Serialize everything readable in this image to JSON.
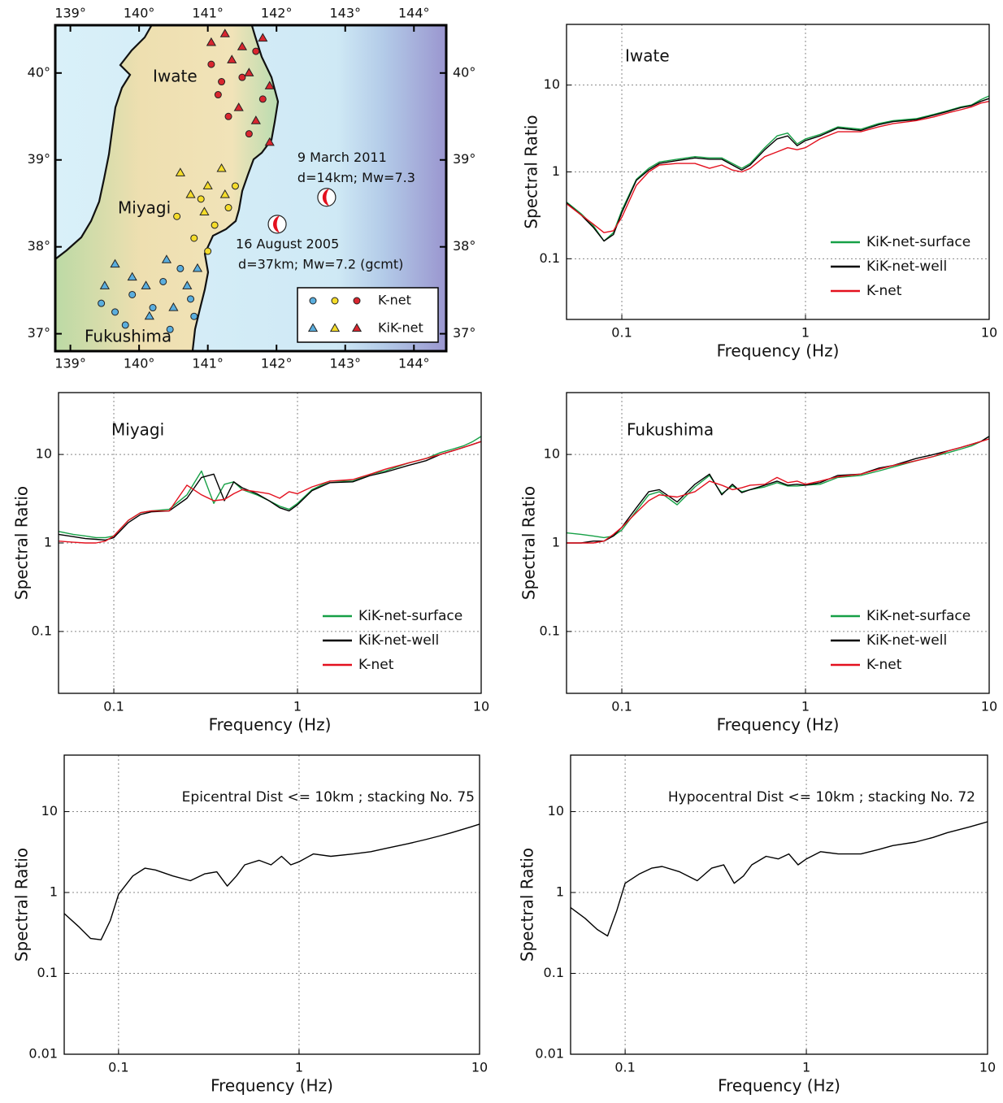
{
  "chart_data": [
    {
      "type": "map",
      "xlim": [
        138.78,
        144.47
      ],
      "ylim": [
        36.8,
        40.55
      ],
      "xticks": [
        {
          "value": 139,
          "label": "139°"
        },
        {
          "value": 140,
          "label": "140°"
        },
        {
          "value": 141,
          "label": "141°"
        },
        {
          "value": 142,
          "label": "142°"
        },
        {
          "value": 143,
          "label": "143°"
        },
        {
          "value": 144,
          "label": "144°"
        }
      ],
      "yticks": [
        {
          "value": 37,
          "label": "37°"
        },
        {
          "value": 38,
          "label": "38°"
        },
        {
          "value": 39,
          "label": "39°"
        },
        {
          "value": 40,
          "label": "40°"
        }
      ],
      "regions": [
        "Iwate",
        "Miyagi",
        "Fukushima"
      ],
      "events": [
        {
          "date": "9 March 2011",
          "desc": "d=14km; Mw=7.3",
          "lon": 142.73,
          "lat": 38.57,
          "color": "#e3101e"
        },
        {
          "date": "16 August 2005",
          "desc": "d=37km; Mw=7.2 (gcmt)",
          "lon": 142.01,
          "lat": 38.26,
          "color": "#e3101e"
        }
      ],
      "series": [
        {
          "name": "K-net",
          "marker": "circle",
          "x": [
            139.45,
            139.65,
            139.9,
            140.2,
            140.45,
            140.75,
            140.8,
            140.35,
            139.8,
            140.6,
            140.55,
            140.9,
            141.1,
            141.3,
            141.0,
            140.8,
            141.4,
            141.05,
            141.2,
            141.5,
            141.7,
            141.3,
            141.6,
            141.15,
            141.8
          ],
          "y": [
            37.35,
            37.25,
            37.45,
            37.3,
            37.05,
            37.4,
            37.2,
            37.6,
            37.1,
            37.75,
            38.35,
            38.55,
            38.25,
            38.45,
            37.95,
            38.1,
            38.7,
            40.1,
            39.9,
            39.95,
            40.25,
            39.5,
            39.3,
            39.75,
            39.7
          ],
          "colors": [
            "#5aaede",
            "#5aaede",
            "#5aaede",
            "#5aaede",
            "#5aaede",
            "#5aaede",
            "#5aaede",
            "#5aaede",
            "#5aaede",
            "#5aaede",
            "#f5dc2a",
            "#f5dc2a",
            "#f5dc2a",
            "#f5dc2a",
            "#f5dc2a",
            "#f5dc2a",
            "#f5dc2a",
            "#d9262f",
            "#d9262f",
            "#d9262f",
            "#d9262f",
            "#d9262f",
            "#d9262f",
            "#d9262f",
            "#d9262f"
          ]
        },
        {
          "name": "KiK-net",
          "marker": "triangle",
          "x": [
            139.65,
            139.9,
            140.1,
            140.4,
            140.7,
            140.85,
            139.5,
            140.15,
            140.5,
            140.6,
            140.75,
            141.0,
            141.25,
            140.95,
            141.2,
            141.05,
            141.25,
            141.5,
            141.35,
            141.6,
            141.8,
            141.9,
            141.45,
            141.7,
            141.9
          ],
          "y": [
            37.8,
            37.65,
            37.55,
            37.85,
            37.55,
            37.75,
            37.55,
            37.2,
            37.3,
            38.85,
            38.6,
            38.7,
            38.6,
            38.4,
            38.9,
            40.35,
            40.45,
            40.3,
            40.15,
            40.0,
            40.4,
            39.85,
            39.6,
            39.45,
            39.2
          ],
          "colors": [
            "#5aaede",
            "#5aaede",
            "#5aaede",
            "#5aaede",
            "#5aaede",
            "#5aaede",
            "#5aaede",
            "#5aaede",
            "#5aaede",
            "#f5dc2a",
            "#f5dc2a",
            "#f5dc2a",
            "#f5dc2a",
            "#f5dc2a",
            "#f5dc2a",
            "#d9262f",
            "#d9262f",
            "#d9262f",
            "#d9262f",
            "#d9262f",
            "#d9262f",
            "#d9262f",
            "#d9262f",
            "#d9262f",
            "#d9262f"
          ]
        }
      ]
    },
    {
      "type": "line",
      "title": "Iwate",
      "xlabel": "Frequency (Hz)",
      "ylabel": "Spectral Ratio",
      "log_x": true,
      "log_y": true,
      "grid": true,
      "legend": "lower right",
      "xlim": [
        0.05,
        10
      ],
      "xticks": [
        0.1,
        1,
        10
      ],
      "ylim": [
        0.02,
        50
      ],
      "yticks": [
        0.1,
        1,
        10
      ],
      "x": [
        0.05,
        0.06,
        0.07,
        0.08,
        0.09,
        0.1,
        0.12,
        0.14,
        0.16,
        0.2,
        0.25,
        0.3,
        0.35,
        0.4,
        0.45,
        0.5,
        0.6,
        0.7,
        0.8,
        0.9,
        1,
        1.2,
        1.5,
        2,
        2.5,
        3,
        4,
        5,
        6,
        7,
        8,
        9,
        10
      ],
      "series": [
        {
          "name": "KiK-net-surface",
          "color": "#16a046",
          "values": [
            0.45,
            0.33,
            0.24,
            0.16,
            0.2,
            0.36,
            0.82,
            1.1,
            1.3,
            1.4,
            1.5,
            1.45,
            1.45,
            1.25,
            1.1,
            1.25,
            1.9,
            2.6,
            2.8,
            2.1,
            2.4,
            2.7,
            3.3,
            3.1,
            3.6,
            3.9,
            4.1,
            4.6,
            5.1,
            5.6,
            5.9,
            6.8,
            7.5
          ]
        },
        {
          "name": "KiK-net-well",
          "color": "#000000",
          "values": [
            0.44,
            0.32,
            0.23,
            0.16,
            0.19,
            0.34,
            0.8,
            1.05,
            1.25,
            1.35,
            1.45,
            1.4,
            1.4,
            1.2,
            1.05,
            1.2,
            1.8,
            2.4,
            2.6,
            2.0,
            2.3,
            2.6,
            3.2,
            3.0,
            3.5,
            3.8,
            4.0,
            4.5,
            5.0,
            5.5,
            5.8,
            6.5,
            7.0
          ]
        },
        {
          "name": "K-net",
          "color": "#e3101e",
          "values": [
            0.43,
            0.32,
            0.25,
            0.2,
            0.21,
            0.3,
            0.7,
            1.0,
            1.2,
            1.25,
            1.25,
            1.1,
            1.2,
            1.05,
            1.0,
            1.1,
            1.5,
            1.7,
            1.9,
            1.8,
            1.9,
            2.4,
            2.9,
            2.9,
            3.3,
            3.6,
            3.9,
            4.3,
            4.8,
            5.2,
            5.6,
            6.2,
            6.5
          ]
        }
      ]
    },
    {
      "type": "line",
      "title": "Miyagi",
      "xlabel": "Frequency (Hz)",
      "ylabel": "Spectral Ratio",
      "log_x": true,
      "log_y": true,
      "grid": true,
      "legend": "lower right",
      "xlim": [
        0.05,
        10
      ],
      "xticks": [
        0.1,
        1,
        10
      ],
      "ylim": [
        0.02,
        50
      ],
      "yticks": [
        0.1,
        1,
        10
      ],
      "x": [
        0.05,
        0.06,
        0.07,
        0.08,
        0.09,
        0.1,
        0.12,
        0.14,
        0.16,
        0.2,
        0.25,
        0.3,
        0.35,
        0.4,
        0.45,
        0.5,
        0.6,
        0.7,
        0.8,
        0.9,
        1,
        1.2,
        1.5,
        2,
        2.5,
        3,
        4,
        5,
        6,
        7,
        8,
        9,
        10
      ],
      "series": [
        {
          "name": "KiK-net-surface",
          "color": "#16a046",
          "values": [
            1.35,
            1.25,
            1.2,
            1.15,
            1.15,
            1.2,
            1.8,
            2.2,
            2.3,
            2.4,
            3.5,
            6.5,
            2.8,
            4.6,
            4.9,
            4.0,
            3.5,
            3.0,
            2.6,
            2.4,
            2.8,
            4.0,
            5.0,
            5.0,
            6.0,
            6.5,
            8.0,
            9.0,
            10.5,
            11.5,
            12.5,
            14,
            16
          ]
        },
        {
          "name": "KiK-net-well",
          "color": "#000000",
          "values": [
            1.25,
            1.18,
            1.12,
            1.1,
            1.08,
            1.15,
            1.7,
            2.1,
            2.25,
            2.3,
            3.2,
            5.5,
            6.0,
            3.0,
            4.9,
            4.2,
            3.6,
            3.0,
            2.5,
            2.3,
            2.7,
            3.9,
            4.8,
            4.9,
            5.8,
            6.3,
            7.5,
            8.5,
            10,
            11,
            12,
            13,
            14
          ]
        },
        {
          "name": "K-net",
          "color": "#e3101e",
          "values": [
            1.05,
            1.02,
            1.0,
            1.0,
            1.05,
            1.2,
            1.8,
            2.2,
            2.3,
            2.3,
            4.5,
            3.5,
            3.0,
            3.1,
            3.6,
            4.0,
            3.8,
            3.6,
            3.2,
            3.8,
            3.6,
            4.3,
            5.0,
            5.2,
            6.0,
            6.8,
            8.0,
            9.0,
            10,
            11,
            12,
            13,
            14
          ]
        }
      ]
    },
    {
      "type": "line",
      "title": "Fukushima",
      "xlabel": "Frequency (Hz)",
      "ylabel": "Spectral Ratio",
      "log_x": true,
      "log_y": true,
      "grid": true,
      "legend": "lower right",
      "xlim": [
        0.05,
        10
      ],
      "xticks": [
        0.1,
        1,
        10
      ],
      "ylim": [
        0.02,
        50
      ],
      "yticks": [
        0.1,
        1,
        10
      ],
      "x": [
        0.05,
        0.06,
        0.07,
        0.08,
        0.09,
        0.1,
        0.12,
        0.14,
        0.16,
        0.2,
        0.25,
        0.3,
        0.35,
        0.4,
        0.45,
        0.5,
        0.6,
        0.7,
        0.8,
        0.9,
        1,
        1.2,
        1.5,
        2,
        2.5,
        3,
        4,
        5,
        6,
        7,
        8,
        9,
        10
      ],
      "series": [
        {
          "name": "KiK-net-surface",
          "color": "#16a046",
          "values": [
            1.3,
            1.25,
            1.2,
            1.15,
            1.2,
            1.4,
            2.3,
            3.5,
            3.8,
            2.7,
            4.3,
            5.8,
            3.6,
            4.4,
            3.8,
            4.0,
            4.3,
            4.8,
            4.4,
            4.4,
            4.5,
            4.6,
            5.5,
            5.8,
            6.5,
            7.2,
            8.5,
            9.5,
            10.5,
            11.5,
            12.5,
            14,
            16
          ]
        },
        {
          "name": "KiK-net-well",
          "color": "#000000",
          "values": [
            1.0,
            1.0,
            1.05,
            1.05,
            1.2,
            1.5,
            2.5,
            3.8,
            4.0,
            2.9,
            4.6,
            6.0,
            3.5,
            4.6,
            3.7,
            4.0,
            4.5,
            5.0,
            4.5,
            4.6,
            4.5,
            4.8,
            5.8,
            6.0,
            7.0,
            7.5,
            9.0,
            10,
            11,
            12,
            13,
            14,
            16
          ]
        },
        {
          "name": "K-net",
          "color": "#e3101e",
          "values": [
            1.0,
            1.0,
            1.0,
            1.05,
            1.25,
            1.5,
            2.2,
            3.0,
            3.5,
            3.3,
            3.8,
            5.0,
            4.5,
            4.0,
            4.2,
            4.5,
            4.6,
            5.5,
            4.8,
            5.0,
            4.6,
            5.0,
            5.6,
            6.0,
            6.8,
            7.5,
            8.5,
            9.5,
            11,
            12,
            13,
            14,
            15
          ]
        }
      ]
    },
    {
      "type": "line",
      "title": "Epicentral Dist <= 10km ; stacking No. 75",
      "xlabel": "Frequency (Hz)",
      "ylabel": "Spectral Ratio",
      "log_x": true,
      "log_y": true,
      "grid": true,
      "xlim": [
        0.05,
        10
      ],
      "xticks": [
        0.1,
        1,
        10
      ],
      "ylim": [
        0.01,
        50
      ],
      "yticks": [
        0.01,
        0.1,
        1,
        10
      ],
      "x": [
        0.05,
        0.06,
        0.07,
        0.08,
        0.09,
        0.1,
        0.12,
        0.14,
        0.16,
        0.2,
        0.25,
        0.3,
        0.35,
        0.4,
        0.45,
        0.5,
        0.6,
        0.7,
        0.8,
        0.9,
        1,
        1.2,
        1.5,
        2,
        2.5,
        3,
        4,
        5,
        6,
        7,
        8,
        9,
        10
      ],
      "color": "#000000",
      "values": [
        0.55,
        0.38,
        0.27,
        0.26,
        0.45,
        0.95,
        1.6,
        2.0,
        1.9,
        1.6,
        1.4,
        1.7,
        1.8,
        1.2,
        1.6,
        2.2,
        2.5,
        2.2,
        2.8,
        2.2,
        2.4,
        3.0,
        2.8,
        3.0,
        3.2,
        3.5,
        4.0,
        4.5,
        5.0,
        5.5,
        6.0,
        6.5,
        7.0
      ]
    },
    {
      "type": "line",
      "title": "Hypocentral Dist <= 10km ; stacking No. 72",
      "xlabel": "Frequency (Hz)",
      "ylabel": "Spectral Ratio",
      "log_x": true,
      "log_y": true,
      "grid": true,
      "xlim": [
        0.05,
        10
      ],
      "xticks": [
        0.1,
        1,
        10
      ],
      "ylim": [
        0.01,
        50
      ],
      "yticks": [
        0.01,
        0.1,
        1,
        10
      ],
      "x": [
        0.05,
        0.06,
        0.07,
        0.08,
        0.09,
        0.1,
        0.12,
        0.14,
        0.16,
        0.2,
        0.25,
        0.3,
        0.35,
        0.4,
        0.45,
        0.5,
        0.6,
        0.7,
        0.8,
        0.9,
        1,
        1.2,
        1.5,
        2,
        2.5,
        3,
        4,
        5,
        6,
        7,
        8,
        9,
        10
      ],
      "color": "#000000",
      "values": [
        0.65,
        0.48,
        0.35,
        0.29,
        0.6,
        1.3,
        1.7,
        2.0,
        2.1,
        1.8,
        1.4,
        2.0,
        2.2,
        1.3,
        1.6,
        2.2,
        2.8,
        2.6,
        3.0,
        2.2,
        2.6,
        3.2,
        3.0,
        3.0,
        3.4,
        3.8,
        4.2,
        4.8,
        5.5,
        6.0,
        6.5,
        7.0,
        7.5
      ]
    }
  ]
}
